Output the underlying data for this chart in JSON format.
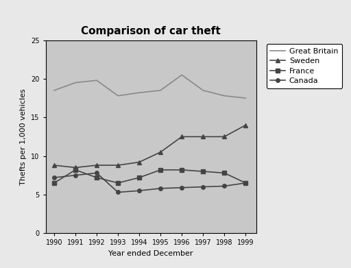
{
  "title": "Comparison of car theft",
  "xlabel": "Year ended December",
  "ylabel": "Thefts per 1,000 vehicles",
  "years": [
    1990,
    1991,
    1992,
    1993,
    1994,
    1995,
    1996,
    1997,
    1998,
    1999
  ],
  "series": {
    "Great Britain": [
      18.5,
      19.5,
      19.8,
      17.8,
      18.2,
      18.5,
      20.5,
      18.5,
      17.8,
      17.5
    ],
    "Sweden": [
      8.8,
      8.5,
      8.8,
      8.8,
      9.2,
      10.5,
      12.5,
      12.5,
      12.5,
      14.0
    ],
    "France": [
      6.5,
      8.2,
      7.2,
      6.5,
      7.2,
      8.2,
      8.2,
      8.0,
      7.8,
      6.5
    ],
    "Canada": [
      7.2,
      7.5,
      7.8,
      5.3,
      5.5,
      5.8,
      5.9,
      6.0,
      6.1,
      6.5
    ]
  },
  "markers": {
    "Great Britain": null,
    "Sweden": "^",
    "France": "s",
    "Canada": "o"
  },
  "line_colors": {
    "Great Britain": "#888888",
    "Sweden": "#444444",
    "France": "#444444",
    "Canada": "#444444"
  },
  "ylim": [
    0,
    25
  ],
  "yticks": [
    0,
    5,
    10,
    15,
    20,
    25
  ],
  "plot_bg": "#c8c8c8",
  "figure_bg": "#e8e8e8",
  "title_fontsize": 11,
  "label_fontsize": 8,
  "tick_fontsize": 7,
  "legend_fontsize": 8
}
